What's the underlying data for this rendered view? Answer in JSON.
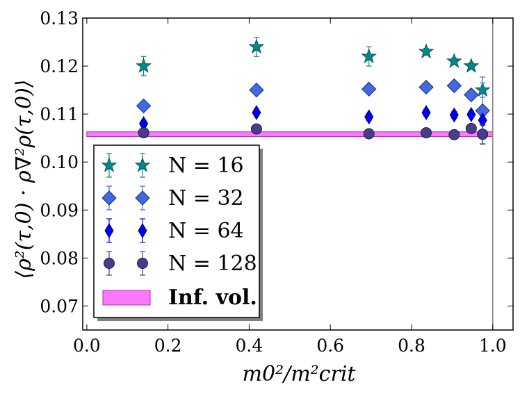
{
  "chart_data": {
    "type": "scatter",
    "title": "",
    "xlabel": "m0²/m²crit",
    "ylabel": "⟨ρ²(τ,0) · ρ∇²ρ(τ,0)⟩",
    "xlim": [
      -0.01,
      1.05
    ],
    "ylim": [
      0.065,
      0.13
    ],
    "x_ticks": [
      0.0,
      0.2,
      0.4,
      0.6,
      0.8,
      1.0
    ],
    "x_tick_labels": [
      "0.0",
      "0.2",
      "0.4",
      "0.6",
      "0.8",
      "1.0"
    ],
    "y_ticks": [
      0.07,
      0.08,
      0.09,
      0.1,
      0.11,
      0.12,
      0.13
    ],
    "y_tick_labels": [
      "0.07",
      "0.08",
      "0.09",
      "0.10",
      "0.11",
      "0.12",
      "0.13"
    ],
    "vertical_line_x": 1.0,
    "legend_position": "lower-left",
    "series": [
      {
        "name": "N = 16",
        "marker": "star",
        "color": "#008b8b",
        "edge": "#0d4f4f",
        "x": [
          0.14,
          0.418,
          0.695,
          0.836,
          0.905,
          0.947,
          0.975
        ],
        "y": [
          0.12,
          0.124,
          0.122,
          0.123,
          0.121,
          0.12,
          0.115
        ],
        "err": [
          0.002,
          0.002,
          0.002,
          0.0007,
          0.0007,
          0.0007,
          0.0015
        ]
      },
      {
        "name": "N = 32",
        "marker": "diamond",
        "color": "#4169e1",
        "edge": "#1c2f7a",
        "x": [
          0.14,
          0.418,
          0.695,
          0.836,
          0.905,
          0.947,
          0.975
        ],
        "y": [
          0.1117,
          0.115,
          0.1152,
          0.1156,
          0.1159,
          0.114,
          0.1107
        ],
        "err": [
          0.0008,
          0.0008,
          0.0008,
          0.0008,
          0.0008,
          0.001,
          0.007
        ]
      },
      {
        "name": "N = 64",
        "marker": "thin_diamond",
        "color": "#0000ee",
        "edge": "#00008b",
        "x": [
          0.14,
          0.418,
          0.695,
          0.836,
          0.905,
          0.947,
          0.975
        ],
        "y": [
          0.108,
          0.1103,
          0.1094,
          0.1103,
          0.1098,
          0.1099,
          0.1087
        ],
        "err": [
          0.0007,
          0.0007,
          0.0007,
          0.0007,
          0.0007,
          0.0007,
          0.001
        ]
      },
      {
        "name": "N = 128",
        "marker": "circle",
        "color": "#483d8b",
        "edge": "#1f1a45",
        "x": [
          0.14,
          0.418,
          0.695,
          0.836,
          0.905,
          0.947,
          0.975
        ],
        "y": [
          0.1061,
          0.1069,
          0.1059,
          0.1061,
          0.1057,
          0.107,
          0.1058
        ],
        "err": [
          0.0004,
          0.0004,
          0.0004,
          0.0004,
          0.0004,
          0.0006,
          0.002
        ]
      }
    ],
    "band": {
      "name": "Inf. vol.",
      "color": "#ff77ff",
      "edge": "#aa33aa",
      "x_range": [
        0.0,
        1.0
      ],
      "y_low": 0.1053,
      "y_high": 0.1063
    },
    "legend": [
      {
        "label": "N = 16"
      },
      {
        "label": "N = 32"
      },
      {
        "label": "N = 64"
      },
      {
        "label": "N = 128"
      },
      {
        "label": "Inf. vol."
      }
    ]
  }
}
